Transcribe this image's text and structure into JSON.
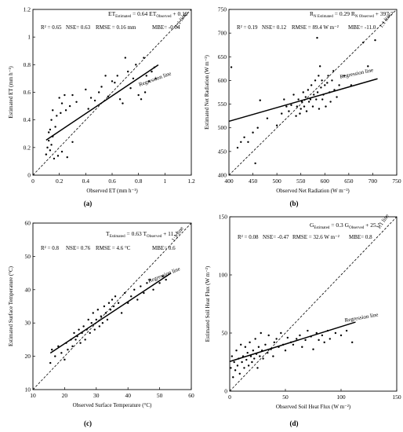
{
  "chart_data": [
    {
      "panel": "(a)",
      "type": "scatter",
      "equation": {
        "main": "ET",
        "main_sub": "Estimated",
        "rhs_pre": " = 0.64 ET",
        "rhs_sub": "Observed",
        "rhs_post": " + 0.19"
      },
      "stats": {
        "r2": "R² = 0.65",
        "nse": "NSE= 0.63",
        "rmse": "RMSE = 0.16 mm",
        "mbe": "MBE= -0.04"
      },
      "xlabel": "Observed ET (mm h⁻¹)",
      "ylabel": "Estimated ET (mm h⁻¹)",
      "xlim": [
        0,
        1.2
      ],
      "ylim": [
        0,
        1.2
      ],
      "xticks": [
        "0",
        "0.2",
        "0.4",
        "0.6",
        "0.8",
        "1",
        "1.2"
      ],
      "yticks": [
        "0",
        "0.2",
        "0.4",
        "0.6",
        "0.8",
        "1",
        "1.2"
      ],
      "one_to_one_label": "1:1 line",
      "regression_label": "Regression line",
      "regression": {
        "slope": 0.64,
        "intercept": 0.19,
        "x_range": [
          0.1,
          0.95
        ]
      },
      "points": [
        [
          0.1,
          0.15
        ],
        [
          0.11,
          0.2
        ],
        [
          0.12,
          0.25
        ],
        [
          0.12,
          0.31
        ],
        [
          0.13,
          0.33
        ],
        [
          0.13,
          0.18
        ],
        [
          0.14,
          0.22
        ],
        [
          0.14,
          0.4
        ],
        [
          0.15,
          0.28
        ],
        [
          0.15,
          0.47
        ],
        [
          0.16,
          0.12
        ],
        [
          0.17,
          0.35
        ],
        [
          0.18,
          0.43
        ],
        [
          0.19,
          0.14
        ],
        [
          0.2,
          0.56
        ],
        [
          0.21,
          0.45
        ],
        [
          0.22,
          0.52
        ],
        [
          0.22,
          0.17
        ],
        [
          0.24,
          0.58
        ],
        [
          0.25,
          0.47
        ],
        [
          0.26,
          0.13
        ],
        [
          0.28,
          0.5
        ],
        [
          0.3,
          0.58
        ],
        [
          0.3,
          0.24
        ],
        [
          0.33,
          0.53
        ],
        [
          0.4,
          0.62
        ],
        [
          0.42,
          0.48
        ],
        [
          0.44,
          0.56
        ],
        [
          0.47,
          0.54
        ],
        [
          0.5,
          0.6
        ],
        [
          0.52,
          0.64
        ],
        [
          0.55,
          0.72
        ],
        [
          0.57,
          0.57
        ],
        [
          0.6,
          0.68
        ],
        [
          0.62,
          0.67
        ],
        [
          0.64,
          0.72
        ],
        [
          0.66,
          0.55
        ],
        [
          0.68,
          0.52
        ],
        [
          0.7,
          0.85
        ],
        [
          0.72,
          0.75
        ],
        [
          0.74,
          0.63
        ],
        [
          0.76,
          0.7
        ],
        [
          0.78,
          0.8
        ],
        [
          0.8,
          0.58
        ],
        [
          0.82,
          0.55
        ],
        [
          0.84,
          0.85
        ],
        [
          0.85,
          0.6
        ],
        [
          0.86,
          0.72
        ],
        [
          0.88,
          0.68
        ],
        [
          0.9,
          0.75
        ],
        [
          0.92,
          0.78
        ],
        [
          0.93,
          0.7
        ]
      ]
    },
    {
      "panel": "(b)",
      "type": "scatter",
      "equation": {
        "main": "R",
        "main_sub": "N Estimated",
        "rhs_pre": " = 0.29 R",
        "rhs_sub": "N Observed",
        "rhs_post": " + 397.7"
      },
      "stats": {
        "r2": "R² = 0.19",
        "nse": "NSE= 0.12",
        "rmse": "RMSE = 89.4 W m⁻²",
        "mbe": "MBE= -11.0"
      },
      "xlabel": "Observed Net Radiation (W m⁻²)",
      "ylabel": "Estimated Net Radiation (W m⁻²)",
      "xlim": [
        400,
        750
      ],
      "ylim": [
        400,
        750
      ],
      "xticks": [
        "400",
        "450",
        "500",
        "550",
        "600",
        "650",
        "700",
        "750"
      ],
      "yticks": [
        "400",
        "450",
        "500",
        "550",
        "600",
        "650",
        "700",
        "750"
      ],
      "one_to_one_label": "1:1 line",
      "regression_label": "Regression line",
      "regression": {
        "slope": 0.29,
        "intercept": 397.7,
        "x_range": [
          400,
          710
        ]
      },
      "points": [
        [
          405,
          628
        ],
        [
          418,
          458
        ],
        [
          425,
          470
        ],
        [
          432,
          480
        ],
        [
          440,
          470
        ],
        [
          450,
          490
        ],
        [
          455,
          425
        ],
        [
          460,
          500
        ],
        [
          465,
          558
        ],
        [
          480,
          520
        ],
        [
          500,
          505
        ],
        [
          510,
          530
        ],
        [
          515,
          560
        ],
        [
          520,
          545
        ],
        [
          525,
          535
        ],
        [
          530,
          548
        ],
        [
          535,
          570
        ],
        [
          540,
          525
        ],
        [
          542,
          545
        ],
        [
          545,
          560
        ],
        [
          548,
          530
        ],
        [
          550,
          540
        ],
        [
          552,
          555
        ],
        [
          555,
          575
        ],
        [
          557,
          545
        ],
        [
          560,
          565
        ],
        [
          562,
          535
        ],
        [
          565,
          580
        ],
        [
          567,
          555
        ],
        [
          570,
          560
        ],
        [
          572,
          590
        ],
        [
          575,
          545
        ],
        [
          577,
          570
        ],
        [
          580,
          600
        ],
        [
          582,
          560
        ],
        [
          584,
          690
        ],
        [
          585,
          575
        ],
        [
          587,
          610
        ],
        [
          588,
          540
        ],
        [
          590,
          630
        ],
        [
          592,
          585
        ],
        [
          594,
          600
        ],
        [
          595,
          560
        ],
        [
          597,
          570
        ],
        [
          600,
          590
        ],
        [
          602,
          545
        ],
        [
          605,
          595
        ],
        [
          607,
          610
        ],
        [
          610,
          575
        ],
        [
          612,
          555
        ],
        [
          615,
          600
        ],
        [
          618,
          620
        ],
        [
          620,
          580
        ],
        [
          625,
          565
        ],
        [
          630,
          590
        ],
        [
          640,
          610
        ],
        [
          655,
          590
        ],
        [
          680,
          680
        ],
        [
          690,
          630
        ],
        [
          705,
          685
        ]
      ]
    },
    {
      "panel": "(c)",
      "type": "scatter",
      "equation": {
        "main": "T",
        "main_sub": "Estimated",
        "rhs_pre": " = 0.63 T",
        "rhs_sub": "Observed",
        "rhs_post": " + 11.2"
      },
      "stats": {
        "r2": "R² = 0.8",
        "nse": "NSE= 0.76",
        "rmse": "RMSE = 4.6 °C",
        "mbe": "MBE= 0.6"
      },
      "xlabel": "Observed Surface Temperature (°C)",
      "ylabel": "Estimated Surface Temperature (°C)",
      "xlim": [
        10,
        60
      ],
      "ylim": [
        10,
        60
      ],
      "xticks": [
        "10",
        "20",
        "30",
        "40",
        "50",
        "60"
      ],
      "yticks": [
        "10",
        "20",
        "30",
        "40",
        "50",
        "60"
      ],
      "one_to_one_label": "1:1 line",
      "regression_label": "Regression line",
      "regression": {
        "slope": 0.63,
        "intercept": 11.2,
        "x_range": [
          15.5,
          53.5
        ]
      },
      "points": [
        [
          15.5,
          18
        ],
        [
          16,
          22
        ],
        [
          17,
          20
        ],
        [
          18,
          23
        ],
        [
          19,
          21
        ],
        [
          20,
          19
        ],
        [
          20.5,
          24
        ],
        [
          21,
          22
        ],
        [
          22,
          25
        ],
        [
          22.5,
          23
        ],
        [
          23,
          27
        ],
        [
          23.5,
          25
        ],
        [
          24,
          26
        ],
        [
          24.5,
          28
        ],
        [
          25,
          24
        ],
        [
          25.5,
          27
        ],
        [
          26,
          29
        ],
        [
          26.5,
          25
        ],
        [
          27,
          28
        ],
        [
          27.5,
          31
        ],
        [
          28,
          27
        ],
        [
          28.5,
          30
        ],
        [
          29,
          33
        ],
        [
          29.5,
          28
        ],
        [
          30,
          31
        ],
        [
          30.5,
          34
        ],
        [
          31,
          29
        ],
        [
          31.5,
          32
        ],
        [
          32,
          30
        ],
        [
          32.5,
          35
        ],
        [
          33,
          33
        ],
        [
          33.5,
          31
        ],
        [
          34,
          36
        ],
        [
          34.5,
          34
        ],
        [
          35,
          37
        ],
        [
          35.5,
          35
        ],
        [
          36,
          38
        ],
        [
          37,
          36
        ],
        [
          38,
          33
        ],
        [
          39,
          39
        ],
        [
          40,
          36
        ],
        [
          41,
          38
        ],
        [
          42,
          40
        ],
        [
          43,
          37
        ],
        [
          44,
          41
        ],
        [
          45,
          39
        ],
        [
          46,
          42
        ],
        [
          47,
          43
        ],
        [
          48,
          40
        ],
        [
          50,
          42
        ],
        [
          51,
          44
        ],
        [
          52,
          43
        ]
      ]
    },
    {
      "panel": "(d)",
      "type": "scatter",
      "equation": {
        "main": "G",
        "main_sub": "Estimated",
        "rhs_pre": " = 0.3 G",
        "rhs_sub": "Observed",
        "rhs_post": " + 25.5"
      },
      "stats": {
        "r2": "R² = 0.08",
        "nse": "NSE= -0.47",
        "rmse": "RMSE = 32.6 W m⁻²",
        "mbe": "MBE= 0.8"
      },
      "xlabel": "Observed Soil Heat Flux (W m⁻²)",
      "ylabel": "Estimated Soil Heat Flux (W m⁻²)",
      "xlim": [
        0,
        150
      ],
      "ylim": [
        0,
        150
      ],
      "xticks": [
        "0",
        "50",
        "100",
        "150"
      ],
      "yticks": [
        "0",
        "50",
        "100",
        "150"
      ],
      "one_to_one_label": "1:1 line",
      "regression_label": "Regression line",
      "regression": {
        "slope": 0.3,
        "intercept": 25.5,
        "x_range": [
          0,
          113
        ]
      },
      "points": [
        [
          1,
          20
        ],
        [
          2,
          30
        ],
        [
          3,
          12
        ],
        [
          4,
          25
        ],
        [
          5,
          18
        ],
        [
          6,
          35
        ],
        [
          7,
          22
        ],
        [
          8,
          28
        ],
        [
          9,
          15
        ],
        [
          10,
          40
        ],
        [
          11,
          25
        ],
        [
          12,
          30
        ],
        [
          13,
          20
        ],
        [
          14,
          38
        ],
        [
          15,
          27
        ],
        [
          16,
          33
        ],
        [
          17,
          22
        ],
        [
          18,
          42
        ],
        [
          19,
          30
        ],
        [
          20,
          25
        ],
        [
          21,
          35
        ],
        [
          22,
          28
        ],
        [
          23,
          45
        ],
        [
          24,
          32
        ],
        [
          25,
          20
        ],
        [
          26,
          38
        ],
        [
          27,
          30
        ],
        [
          28,
          50
        ],
        [
          29,
          35
        ],
        [
          30,
          28
        ],
        [
          32,
          40
        ],
        [
          34,
          33
        ],
        [
          35,
          48
        ],
        [
          37,
          36
        ],
        [
          39,
          30
        ],
        [
          40,
          42
        ],
        [
          42,
          45
        ],
        [
          44,
          38
        ],
        [
          46,
          50
        ],
        [
          48,
          40
        ],
        [
          50,
          35
        ],
        [
          52,
          46
        ],
        [
          55,
          42
        ],
        [
          57,
          40
        ],
        [
          60,
          45
        ],
        [
          63,
          48
        ],
        [
          65,
          38
        ],
        [
          68,
          44
        ],
        [
          70,
          52
        ],
        [
          73,
          47
        ],
        [
          75,
          36
        ],
        [
          78,
          50
        ],
        [
          80,
          44
        ],
        [
          83,
          48
        ],
        [
          85,
          42
        ],
        [
          88,
          52
        ],
        [
          90,
          45
        ],
        [
          95,
          50
        ],
        [
          100,
          48
        ],
        [
          105,
          52
        ],
        [
          110,
          42
        ]
      ]
    }
  ]
}
